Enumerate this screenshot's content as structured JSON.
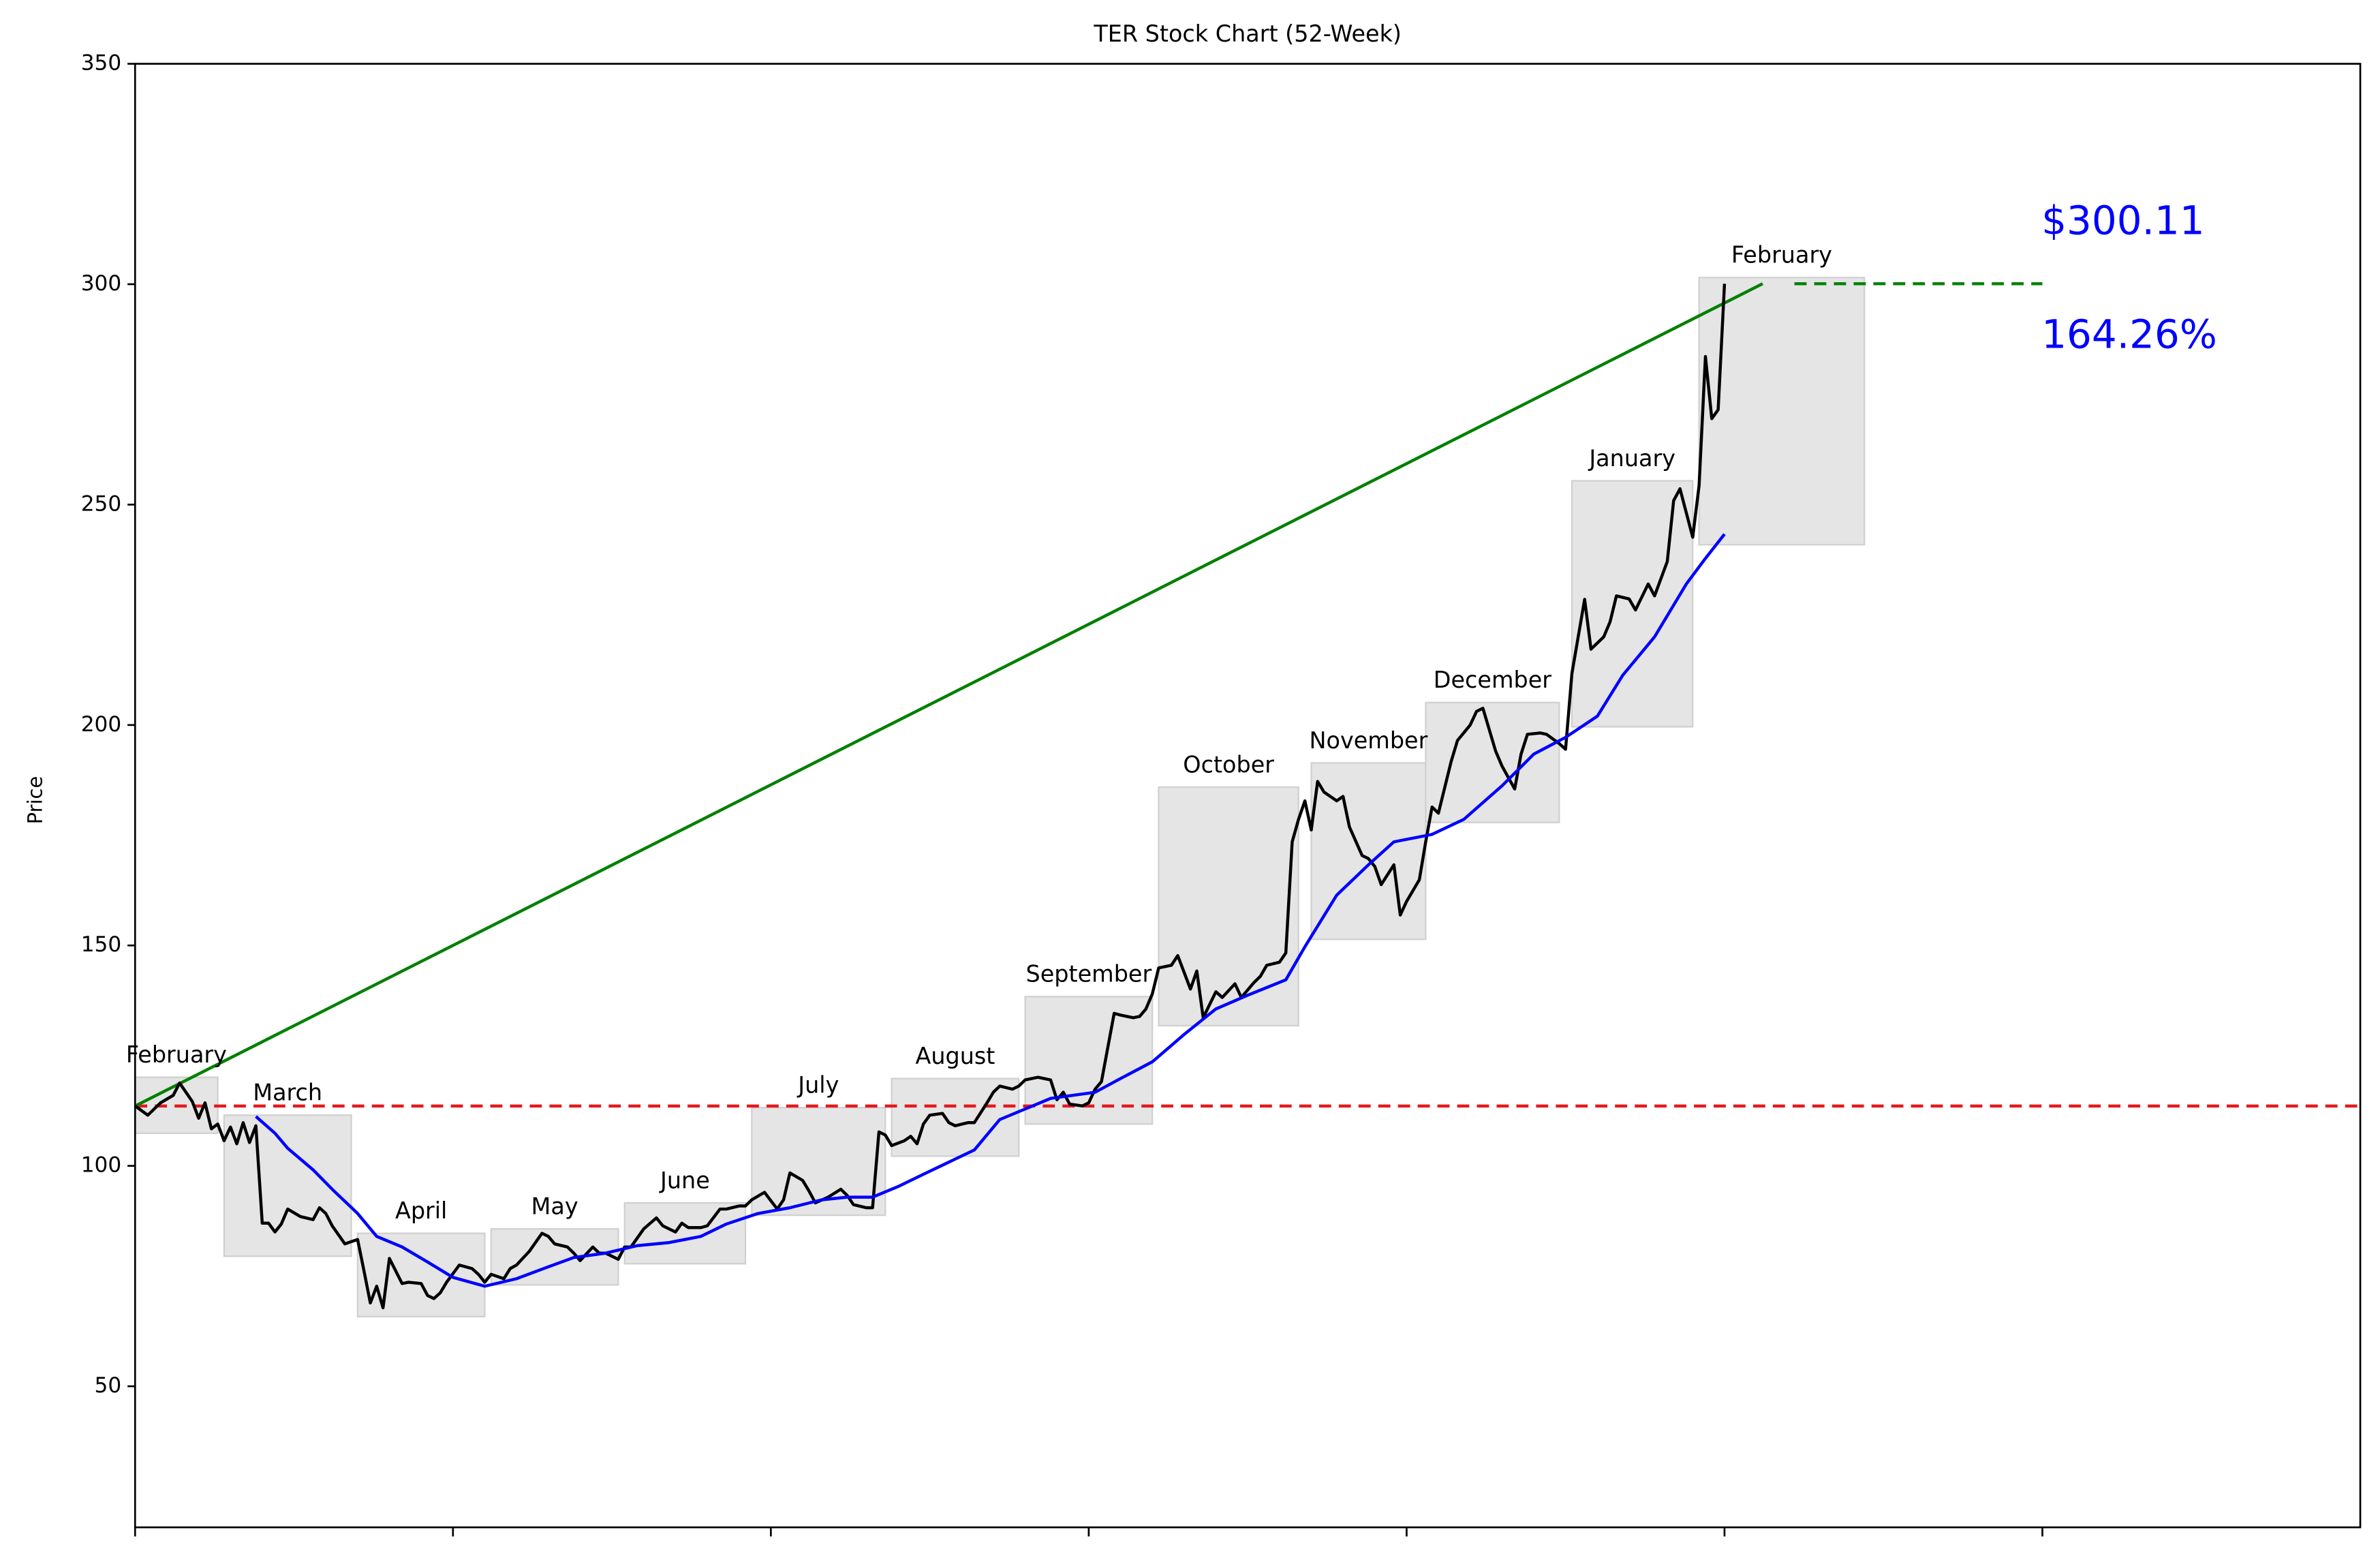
{
  "chart_data": {
    "type": "line",
    "title": "TER Stock Chart (52-Week)",
    "y_label": "Price",
    "xlim": [
      0,
      350
    ],
    "xticks": [
      0,
      50,
      100,
      150,
      200,
      250,
      300
    ],
    "ylim": [
      18,
      350
    ],
    "yticks": [
      50,
      100,
      150,
      200,
      250,
      300,
      350
    ],
    "grid": false,
    "series": [
      {
        "color": "#000000",
        "x": [
          0,
          2,
          4,
          6,
          7,
          9,
          10,
          11,
          12,
          13,
          14,
          15,
          16,
          17,
          18,
          19,
          20,
          21,
          22,
          23,
          24,
          26,
          28,
          29,
          30,
          31,
          33,
          35,
          36,
          37,
          38,
          39,
          40,
          42,
          43,
          45,
          46,
          47,
          48,
          49,
          51,
          53,
          54,
          55,
          56,
          58,
          59,
          60,
          62,
          64,
          65,
          66,
          68,
          69,
          70,
          72,
          73,
          74,
          76,
          77,
          78,
          80,
          82,
          83,
          85,
          86,
          87,
          89,
          90,
          92,
          93,
          95,
          96,
          97,
          99,
          101,
          102,
          103,
          105,
          106,
          107,
          109,
          111,
          112,
          113,
          115,
          116,
          117,
          118,
          119,
          121,
          122,
          123,
          124,
          125,
          127,
          128,
          129,
          131,
          132,
          134,
          135,
          136,
          138,
          139,
          140,
          142,
          144,
          145,
          146,
          147,
          149,
          150,
          151,
          152,
          154,
          155,
          157,
          158,
          159,
          160,
          161,
          163,
          164,
          166,
          167,
          168,
          170,
          171,
          173,
          174,
          176,
          177,
          178,
          180,
          181,
          182,
          183,
          184,
          185,
          186,
          187,
          189,
          190,
          191,
          193,
          194,
          195,
          196,
          198,
          199,
          200,
          202,
          203,
          204,
          205,
          207,
          208,
          210,
          211,
          212,
          214,
          215,
          217,
          218,
          219,
          221,
          222,
          224,
          225,
          226,
          228,
          229,
          231,
          232,
          233,
          235,
          236,
          238,
          239,
          241,
          242,
          243,
          245,
          246,
          247,
          248,
          249,
          250
        ],
        "values": [
          113.6,
          111.5,
          114.3,
          116,
          118.8,
          114.6,
          110.8,
          114.3,
          108.4,
          109.5,
          105.7,
          108.8,
          105,
          109.8,
          105.3,
          109.1,
          87,
          87,
          85,
          86.8,
          90.2,
          88.5,
          87.8,
          90.5,
          89.2,
          86.4,
          82.3,
          83.3,
          76.2,
          68.9,
          72.7,
          67.8,
          79,
          73.3,
          73.6,
          73.3,
          70.6,
          69.9,
          71.2,
          73.6,
          77.5,
          76.7,
          75.4,
          73.6,
          75.4,
          74.4,
          76.7,
          77.5,
          80.6,
          84.7,
          84,
          82.3,
          81.6,
          80.2,
          78.5,
          81.6,
          80.2,
          80.2,
          78.8,
          81.6,
          81.6,
          85.7,
          88.2,
          86.4,
          85,
          87,
          86,
          86,
          86.4,
          90.2,
          90.2,
          90.9,
          90.9,
          92.3,
          94,
          90.2,
          92.3,
          98.4,
          96.7,
          94.3,
          91.6,
          92.9,
          94.7,
          93.3,
          91.2,
          90.5,
          90.5,
          107.7,
          107,
          104.6,
          105.7,
          106.7,
          105,
          109.5,
          111.5,
          111.9,
          109.8,
          109.1,
          109.8,
          109.8,
          114.3,
          116.7,
          118.1,
          117.4,
          118.1,
          119.5,
          120.1,
          119.5,
          115,
          116.7,
          114,
          113.6,
          114.3,
          117.4,
          119.1,
          134.6,
          134.2,
          133.6,
          133.9,
          135.6,
          139,
          144.9,
          145.5,
          147.7,
          140.1,
          144.2,
          133.6,
          139.5,
          138.2,
          141.3,
          138.2,
          141.6,
          143,
          145.5,
          146.2,
          148.3,
          173.5,
          178.6,
          182.8,
          176.2,
          187.2,
          184.8,
          182.8,
          183.8,
          176.9,
          170.4,
          169.7,
          167.9,
          163.8,
          168.3,
          156.9,
          160,
          164.9,
          173.5,
          181.4,
          180,
          191.7,
          196.5,
          200,
          203.1,
          203.8,
          194.1,
          190.7,
          185.5,
          193.4,
          197.9,
          198.2,
          197.9,
          195.8,
          194.5,
          211.7,
          228.5,
          217.2,
          220,
          223.4,
          229.3,
          228.6,
          226.1,
          232,
          229.3,
          237.1,
          250.9,
          253.6,
          242.6,
          254.3,
          283.6,
          269.5,
          271.5,
          300.1
        ]
      },
      {
        "color": "#0000ff",
        "x": [
          19,
          22,
          24,
          28,
          31,
          35,
          38,
          42,
          46,
          50,
          55,
          60,
          65,
          69,
          74,
          79,
          84,
          89,
          93,
          98,
          103,
          108,
          112,
          116,
          120,
          124,
          132,
          136,
          144,
          151,
          155,
          160,
          165,
          170,
          175,
          181,
          184,
          189,
          194,
          198,
          204,
          209,
          215,
          220,
          225,
          230,
          234,
          239,
          244,
          247,
          250
        ],
        "values": [
          111.2,
          107.4,
          104,
          99.1,
          94.7,
          89.2,
          84,
          81.6,
          78.2,
          74.7,
          72.7,
          74.4,
          77.1,
          79.2,
          80.2,
          81.9,
          82.6,
          84,
          86.8,
          89.2,
          90.5,
          92.3,
          92.9,
          92.9,
          95.3,
          98.1,
          103.6,
          110.5,
          115.3,
          116.7,
          119.8,
          123.6,
          129.8,
          135.6,
          138.7,
          142.2,
          149.7,
          161.4,
          168.3,
          173.5,
          175.2,
          178.6,
          186.2,
          193.4,
          197.2,
          202,
          211.3,
          220,
          232,
          237.8,
          243.3
        ]
      }
    ],
    "months": [
      {
        "name": "February",
        "x": [
          0,
          13
        ],
        "y": [
          107.4,
          120.1
        ]
      },
      {
        "name": "March",
        "x": [
          14,
          34
        ],
        "y": [
          79.5,
          111.5
        ]
      },
      {
        "name": "April",
        "x": [
          35,
          55
        ],
        "y": [
          65.8,
          84.7
        ]
      },
      {
        "name": "May",
        "x": [
          56,
          76
        ],
        "y": [
          73,
          85.7
        ]
      },
      {
        "name": "June",
        "x": [
          77,
          96
        ],
        "y": [
          77.8,
          91.6
        ]
      },
      {
        "name": "July",
        "x": [
          97,
          118
        ],
        "y": [
          88.8,
          113.2
        ]
      },
      {
        "name": "August",
        "x": [
          119,
          139
        ],
        "y": [
          102.2,
          119.8
        ]
      },
      {
        "name": "September",
        "x": [
          140,
          160
        ],
        "y": [
          109.5,
          138.4
        ]
      },
      {
        "name": "October",
        "x": [
          161,
          183
        ],
        "y": [
          131.8,
          185.9
        ]
      },
      {
        "name": "November",
        "x": [
          185,
          203
        ],
        "y": [
          151.4,
          191.4
        ]
      },
      {
        "name": "December",
        "x": [
          203,
          224
        ],
        "y": [
          177.9,
          205.1
        ]
      },
      {
        "name": "January",
        "x": [
          226,
          245
        ],
        "y": [
          199.6,
          255.4
        ]
      },
      {
        "name": "February",
        "x": [
          246,
          272
        ],
        "y": [
          240.9,
          301.5
        ]
      }
    ],
    "month_box_color": "#e5e5e5",
    "reference_lines": [
      {
        "y": 113.57,
        "color": "#e41a1c",
        "dashed": true
      },
      {
        "x": [
          0,
          256
        ],
        "y": [
          113.57,
          300.11
        ],
        "color": "#008000",
        "dashed": false
      },
      {
        "x": [
          261,
          300
        ],
        "y": [
          300.11,
          300.11
        ],
        "color": "#008000",
        "dashed": true
      }
    ],
    "annotations": [
      {
        "text": "$300.11",
        "color": "#0000ff"
      },
      {
        "text": "164.26%",
        "color": "#0000ff"
      }
    ]
  }
}
